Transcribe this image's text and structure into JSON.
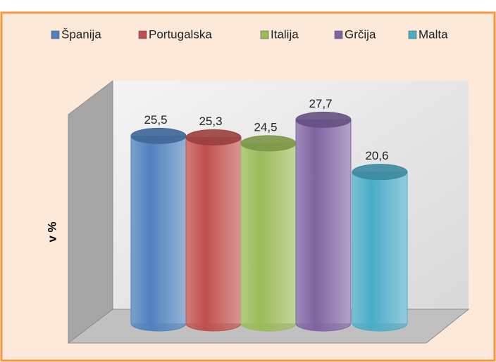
{
  "chart_data": {
    "type": "bar3d",
    "y_label": "v %",
    "ylim": [
      0,
      33
    ],
    "series": [
      {
        "name": "Španija",
        "color": "#4f81bd",
        "values": [
          25.5
        ],
        "value_labels": [
          "25,5"
        ]
      },
      {
        "name": "Portugalska",
        "color": "#c0504d",
        "values": [
          25.3
        ],
        "value_labels": [
          "25,3"
        ]
      },
      {
        "name": "Italija",
        "color": "#9bbb59",
        "values": [
          24.5
        ],
        "value_labels": [
          "24,5"
        ]
      },
      {
        "name": "Grčija",
        "color": "#8064a2",
        "values": [
          27.7
        ],
        "value_labels": [
          "27,7"
        ]
      },
      {
        "name": "Malta",
        "color": "#4bacc6",
        "values": [
          20.6
        ],
        "value_labels": [
          "20,6"
        ]
      }
    ]
  }
}
